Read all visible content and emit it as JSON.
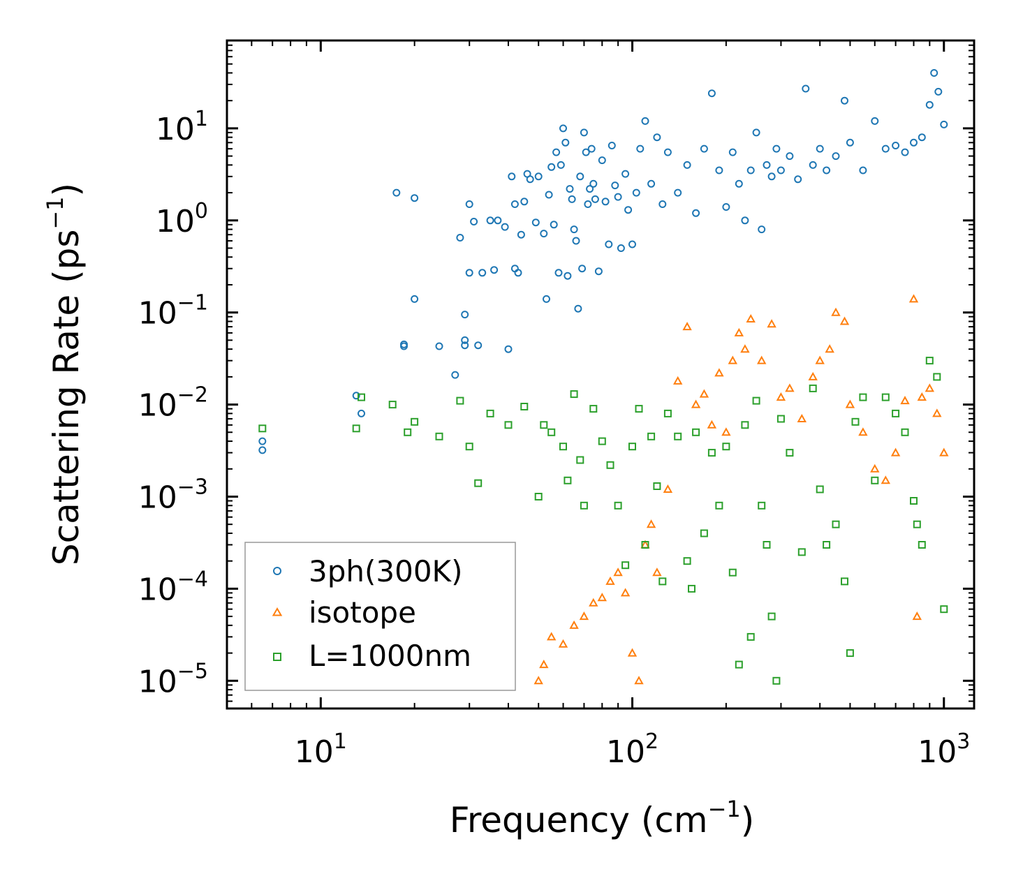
{
  "chart_data": {
    "type": "scatter",
    "title": "",
    "xlabel": "Frequency (cm",
    "xlabel_sup": "−1",
    "xlabel_end": ")",
    "ylabel": "Scattering Rate (ps",
    "ylabel_sup": "−1",
    "ylabel_end": ")",
    "xscale": "log",
    "yscale": "log",
    "xlim": [
      5,
      1250
    ],
    "ylim": [
      5e-06,
      90
    ],
    "x_ticks": [
      {
        "value": 10,
        "base": "10",
        "exp": "1"
      },
      {
        "value": 100,
        "base": "10",
        "exp": "2"
      },
      {
        "value": 1000,
        "base": "10",
        "exp": "3"
      }
    ],
    "y_ticks": [
      {
        "value": 10,
        "base": "10",
        "exp": "1"
      },
      {
        "value": 1,
        "base": "10",
        "exp": "0"
      },
      {
        "value": 0.1,
        "base": "10",
        "exp": "−1"
      },
      {
        "value": 0.01,
        "base": "10",
        "exp": "−2"
      },
      {
        "value": 0.001,
        "base": "10",
        "exp": "−3"
      },
      {
        "value": 0.0001,
        "base": "10",
        "exp": "−4"
      },
      {
        "value": 1e-05,
        "base": "10",
        "exp": "−5"
      }
    ],
    "legend": {
      "position": "lower-left",
      "entries": [
        {
          "label": "3ph(300K)",
          "marker": "circle",
          "color": "#1f77b4"
        },
        {
          "label": "isotope",
          "marker": "triangle",
          "color": "#ff7f0e"
        },
        {
          "label": "L=1000nm",
          "marker": "square",
          "color": "#2ca02c"
        }
      ]
    },
    "series": [
      {
        "name": "3ph(300K)",
        "marker": "circle",
        "color": "#1f77b4",
        "points": [
          [
            6.5,
            0.0032
          ],
          [
            6.5,
            0.004
          ],
          [
            13,
            0.0125
          ],
          [
            13.5,
            0.008
          ],
          [
            17.5,
            2.0
          ],
          [
            20,
            1.75
          ],
          [
            20,
            0.14
          ],
          [
            18.5,
            0.045
          ],
          [
            18.5,
            0.043
          ],
          [
            24,
            0.043
          ],
          [
            27,
            0.021
          ],
          [
            28,
            0.65
          ],
          [
            29,
            0.095
          ],
          [
            29,
            0.05
          ],
          [
            29,
            0.044
          ],
          [
            30,
            0.27
          ],
          [
            30,
            1.5
          ],
          [
            31,
            0.97
          ],
          [
            32,
            0.044
          ],
          [
            33,
            0.27
          ],
          [
            35,
            1.0
          ],
          [
            36,
            0.29
          ],
          [
            37,
            1.0
          ],
          [
            39,
            0.85
          ],
          [
            40,
            0.04
          ],
          [
            41,
            3.0
          ],
          [
            42,
            1.5
          ],
          [
            42,
            0.3
          ],
          [
            43,
            0.27
          ],
          [
            44,
            0.7
          ],
          [
            45,
            1.6
          ],
          [
            46,
            3.2
          ],
          [
            47,
            2.8
          ],
          [
            49,
            0.95
          ],
          [
            50,
            3.0
          ],
          [
            52,
            0.72
          ],
          [
            53,
            0.14
          ],
          [
            54,
            1.9
          ],
          [
            55,
            3.8
          ],
          [
            56,
            0.9
          ],
          [
            57,
            5.5
          ],
          [
            58,
            0.27
          ],
          [
            59,
            4.0
          ],
          [
            60,
            10.0
          ],
          [
            61,
            7.0
          ],
          [
            62,
            0.25
          ],
          [
            63,
            2.2
          ],
          [
            64,
            1.7
          ],
          [
            65,
            0.8
          ],
          [
            66,
            0.6
          ],
          [
            67,
            0.11
          ],
          [
            68,
            3.0
          ],
          [
            69,
            0.3
          ],
          [
            70,
            9.0
          ],
          [
            71,
            5.5
          ],
          [
            72,
            1.5
          ],
          [
            73,
            2.2
          ],
          [
            74,
            6.0
          ],
          [
            75,
            2.5
          ],
          [
            76,
            1.7
          ],
          [
            78,
            0.28
          ],
          [
            80,
            4.5
          ],
          [
            82,
            1.6
          ],
          [
            84,
            0.55
          ],
          [
            86,
            6.5
          ],
          [
            88,
            2.4
          ],
          [
            90,
            1.8
          ],
          [
            92,
            0.5
          ],
          [
            95,
            3.2
          ],
          [
            97,
            1.3
          ],
          [
            100,
            0.55
          ],
          [
            103,
            2.0
          ],
          [
            106,
            6.0
          ],
          [
            110,
            12.0
          ],
          [
            115,
            2.5
          ],
          [
            120,
            8.0
          ],
          [
            125,
            1.5
          ],
          [
            130,
            5.5
          ],
          [
            140,
            2.0
          ],
          [
            150,
            4.0
          ],
          [
            160,
            1.2
          ],
          [
            170,
            6.0
          ],
          [
            180,
            24.0
          ],
          [
            190,
            3.5
          ],
          [
            200,
            1.4
          ],
          [
            210,
            5.5
          ],
          [
            220,
            2.5
          ],
          [
            230,
            1.0
          ],
          [
            240,
            3.5
          ],
          [
            250,
            9.0
          ],
          [
            260,
            0.8
          ],
          [
            270,
            4.0
          ],
          [
            280,
            3.0
          ],
          [
            290,
            6.0
          ],
          [
            300,
            3.5
          ],
          [
            320,
            5.0
          ],
          [
            340,
            2.8
          ],
          [
            360,
            27.0
          ],
          [
            380,
            4.0
          ],
          [
            400,
            6.0
          ],
          [
            420,
            3.5
          ],
          [
            450,
            5.0
          ],
          [
            480,
            20.0
          ],
          [
            500,
            7.0
          ],
          [
            550,
            3.5
          ],
          [
            600,
            12.0
          ],
          [
            650,
            6.0
          ],
          [
            700,
            6.5
          ],
          [
            750,
            5.5
          ],
          [
            800,
            7.0
          ],
          [
            850,
            8.0
          ],
          [
            900,
            18.0
          ],
          [
            930,
            40.0
          ],
          [
            960,
            25.0
          ],
          [
            1000,
            11.0
          ]
        ]
      },
      {
        "name": "isotope",
        "marker": "triangle",
        "color": "#ff7f0e",
        "points": [
          [
            50,
            1e-05
          ],
          [
            52,
            1.5e-05
          ],
          [
            55,
            3e-05
          ],
          [
            60,
            2.5e-05
          ],
          [
            65,
            4e-05
          ],
          [
            70,
            5e-05
          ],
          [
            75,
            7e-05
          ],
          [
            80,
            8e-05
          ],
          [
            85,
            0.00012
          ],
          [
            90,
            0.00015
          ],
          [
            95,
            9e-05
          ],
          [
            100,
            2e-05
          ],
          [
            105,
            1e-05
          ],
          [
            110,
            0.0003
          ],
          [
            115,
            0.0005
          ],
          [
            120,
            0.00015
          ],
          [
            130,
            0.0012
          ],
          [
            140,
            0.018
          ],
          [
            150,
            0.07
          ],
          [
            160,
            0.01
          ],
          [
            170,
            0.013
          ],
          [
            180,
            0.006
          ],
          [
            190,
            0.022
          ],
          [
            200,
            0.005
          ],
          [
            210,
            0.03
          ],
          [
            220,
            0.06
          ],
          [
            230,
            0.04
          ],
          [
            240,
            0.085
          ],
          [
            260,
            0.03
          ],
          [
            280,
            0.075
          ],
          [
            300,
            0.012
          ],
          [
            320,
            0.015
          ],
          [
            350,
            0.007
          ],
          [
            380,
            0.02
          ],
          [
            400,
            0.03
          ],
          [
            430,
            0.04
          ],
          [
            450,
            0.1
          ],
          [
            480,
            0.08
          ],
          [
            500,
            0.01
          ],
          [
            550,
            0.005
          ],
          [
            600,
            0.002
          ],
          [
            650,
            0.0015
          ],
          [
            700,
            0.003
          ],
          [
            750,
            0.011
          ],
          [
            800,
            0.14
          ],
          [
            820,
            5e-05
          ],
          [
            850,
            0.012
          ],
          [
            900,
            0.015
          ],
          [
            950,
            0.008
          ],
          [
            1000,
            0.003
          ]
        ]
      },
      {
        "name": "L=1000nm",
        "marker": "square",
        "color": "#2ca02c",
        "points": [
          [
            6.5,
            0.0055
          ],
          [
            13,
            0.0055
          ],
          [
            13.5,
            0.012
          ],
          [
            17,
            0.01
          ],
          [
            19,
            0.005
          ],
          [
            20,
            0.0065
          ],
          [
            24,
            0.0045
          ],
          [
            28,
            0.011
          ],
          [
            30,
            0.0035
          ],
          [
            32,
            0.0014
          ],
          [
            35,
            0.008
          ],
          [
            40,
            0.006
          ],
          [
            45,
            0.0095
          ],
          [
            50,
            0.001
          ],
          [
            52,
            0.006
          ],
          [
            55,
            0.005
          ],
          [
            60,
            0.0035
          ],
          [
            62,
            0.0015
          ],
          [
            65,
            0.013
          ],
          [
            68,
            0.0025
          ],
          [
            70,
            0.0008
          ],
          [
            75,
            0.009
          ],
          [
            80,
            0.004
          ],
          [
            85,
            0.0022
          ],
          [
            90,
            0.0008
          ],
          [
            95,
            0.00018
          ],
          [
            100,
            0.0035
          ],
          [
            105,
            0.009
          ],
          [
            110,
            0.0003
          ],
          [
            115,
            0.0045
          ],
          [
            120,
            0.0013
          ],
          [
            125,
            0.00012
          ],
          [
            130,
            0.008
          ],
          [
            140,
            0.0045
          ],
          [
            150,
            0.0002
          ],
          [
            155,
            0.0001
          ],
          [
            160,
            0.005
          ],
          [
            170,
            0.0004
          ],
          [
            180,
            0.003
          ],
          [
            190,
            0.0008
          ],
          [
            200,
            0.0035
          ],
          [
            210,
            0.00015
          ],
          [
            220,
            1.5e-05
          ],
          [
            230,
            0.006
          ],
          [
            240,
            3e-05
          ],
          [
            250,
            0.011
          ],
          [
            260,
            0.0008
          ],
          [
            270,
            0.0003
          ],
          [
            280,
            5e-05
          ],
          [
            290,
            1e-05
          ],
          [
            300,
            0.007
          ],
          [
            320,
            0.003
          ],
          [
            350,
            0.00025
          ],
          [
            380,
            0.015
          ],
          [
            400,
            0.0012
          ],
          [
            420,
            0.0003
          ],
          [
            450,
            0.0005
          ],
          [
            480,
            0.00012
          ],
          [
            500,
            2e-05
          ],
          [
            520,
            0.0065
          ],
          [
            550,
            0.012
          ],
          [
            600,
            0.0015
          ],
          [
            650,
            0.012
          ],
          [
            700,
            0.008
          ],
          [
            750,
            0.005
          ],
          [
            800,
            0.0009
          ],
          [
            820,
            0.0005
          ],
          [
            850,
            0.0003
          ],
          [
            900,
            0.03
          ],
          [
            950,
            0.02
          ],
          [
            1000,
            6e-05
          ]
        ]
      }
    ]
  }
}
